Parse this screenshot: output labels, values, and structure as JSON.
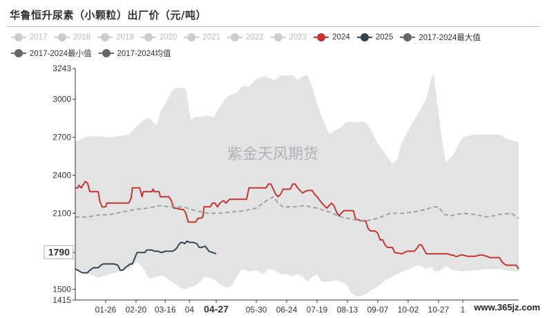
{
  "header": {
    "title": "华鲁恒升尿素（小颗粒）出厂价（元/吨）"
  },
  "legend": [
    {
      "name": "2017",
      "color": "#cccccc",
      "enabled": false
    },
    {
      "name": "2018",
      "color": "#cccccc",
      "enabled": false
    },
    {
      "name": "2019",
      "color": "#cccccc",
      "enabled": false
    },
    {
      "name": "2020",
      "color": "#cccccc",
      "enabled": false
    },
    {
      "name": "2021",
      "color": "#cccccc",
      "enabled": false
    },
    {
      "name": "2022",
      "color": "#cccccc",
      "enabled": false
    },
    {
      "name": "2023",
      "color": "#cccccc",
      "enabled": false
    },
    {
      "name": "2024",
      "color": "#c23531",
      "enabled": true
    },
    {
      "name": "2025",
      "color": "#2f4554",
      "enabled": true
    },
    {
      "name": "2017-2024最大值",
      "color": "#666666",
      "enabled": true
    },
    {
      "name": "2017-2024最小值",
      "color": "#666666",
      "enabled": true
    },
    {
      "name": "2017-2024均值",
      "color": "#666666",
      "enabled": true
    }
  ],
  "watermark": "紫金天风期货",
  "site_watermark": "www.365jz.com",
  "chart_data": {
    "type": "line",
    "ylim": [
      1415,
      3243
    ],
    "y_ticks": [
      1415,
      1500,
      1790,
      2100,
      2400,
      2700,
      3000,
      3243
    ],
    "y_highlight": {
      "value": 1790,
      "label": "1790"
    },
    "x_domain": [
      1,
      366
    ],
    "x_ticks": [
      {
        "label": "01-26",
        "day": 26
      },
      {
        "label": "02-20",
        "day": 51
      },
      {
        "label": "03-16",
        "day": 75
      },
      {
        "label": "04",
        "day": 95
      },
      {
        "label": "04-27",
        "day": 117,
        "bold": true
      },
      {
        "label": "05-30",
        "day": 150
      },
      {
        "label": "06-24",
        "day": 175
      },
      {
        "label": "07-19",
        "day": 200
      },
      {
        "label": "08-13",
        "day": 225
      },
      {
        "label": "09-07",
        "day": 250
      },
      {
        "label": "10-02",
        "day": 275
      },
      {
        "label": "10-27",
        "day": 300
      },
      {
        "label": "1",
        "day": 320
      }
    ],
    "band": {
      "x": [
        1,
        5,
        10,
        15,
        20,
        30,
        45,
        52,
        58,
        62,
        68,
        72,
        75,
        80,
        84,
        88,
        92,
        96,
        100,
        104,
        108,
        115,
        120,
        126,
        130,
        134,
        138,
        144,
        150,
        156,
        160,
        165,
        170,
        175,
        180,
        184,
        188,
        192,
        196,
        200,
        204,
        210,
        216,
        220,
        224,
        228,
        234,
        240,
        244,
        250,
        256,
        262,
        266,
        270,
        276,
        280,
        284,
        290,
        294,
        296,
        298,
        302,
        306,
        312,
        320,
        330,
        340,
        350,
        356,
        362,
        366
      ],
      "max": [
        2665,
        2680,
        2705,
        2710,
        2705,
        2700,
        2720,
        2790,
        2840,
        2850,
        2790,
        2920,
        2960,
        3060,
        3090,
        3090,
        3080,
        2840,
        2860,
        2860,
        2870,
        2860,
        2940,
        3020,
        3040,
        3050,
        3100,
        3100,
        3160,
        3180,
        3170,
        3150,
        3190,
        3185,
        3190,
        3150,
        3180,
        3190,
        3100,
        2960,
        2860,
        2720,
        2760,
        2780,
        2820,
        2820,
        2820,
        2820,
        2760,
        2650,
        2570,
        2490,
        2520,
        2660,
        2770,
        2840,
        2900,
        3000,
        3160,
        3200,
        3050,
        2740,
        2500,
        2560,
        2700,
        2720,
        2720,
        2720,
        2690,
        2670,
        2660
      ],
      "min": [
        1660,
        1650,
        1630,
        1610,
        1590,
        1620,
        1660,
        1720,
        1650,
        1580,
        1600,
        1610,
        1600,
        1560,
        1540,
        1510,
        1500,
        1520,
        1530,
        1560,
        1600,
        1580,
        1540,
        1510,
        1530,
        1600,
        1660,
        1640,
        1650,
        1620,
        1660,
        1650,
        1620,
        1620,
        1600,
        1620,
        1600,
        1560,
        1600,
        1620,
        1560,
        1560,
        1570,
        1560,
        1540,
        1470,
        1440,
        1460,
        1490,
        1520,
        1570,
        1600,
        1620,
        1640,
        1660,
        1680,
        1690,
        1660,
        1680,
        1650,
        1640,
        1650,
        1680,
        1650,
        1640,
        1650,
        1660,
        1660,
        1650,
        1640,
        1640
      ]
    },
    "series": [
      {
        "name": "2024",
        "color": "#c23531",
        "style": "solid",
        "x": [
          1,
          3,
          4,
          6,
          7,
          8,
          9,
          11,
          13,
          20,
          21,
          23,
          26,
          27,
          45,
          47,
          48,
          54,
          56,
          57,
          64,
          65,
          66,
          70,
          71,
          78,
          80,
          82,
          84,
          88,
          90,
          92,
          94,
          100,
          102,
          104,
          106,
          107,
          112,
          114,
          116,
          118,
          120,
          123,
          125,
          128,
          140,
          142,
          144,
          158,
          160,
          162,
          164,
          166,
          168,
          170,
          172,
          174,
          178,
          180,
          182,
          184,
          186,
          188,
          190,
          192,
          196,
          198,
          200,
          204,
          206,
          208,
          210,
          212,
          214,
          216,
          218,
          222,
          230,
          231,
          232,
          234,
          236,
          240,
          242,
          244,
          248,
          250,
          252,
          254,
          256,
          258,
          262,
          264,
          270,
          272,
          274,
          278,
          280,
          282,
          284,
          286,
          290,
          296,
          298,
          300,
          306,
          308,
          310,
          312,
          314,
          316,
          318,
          320,
          324,
          326,
          328,
          330,
          334,
          336,
          340,
          342,
          350,
          352,
          354,
          356,
          358,
          362,
          364,
          366
        ],
        "y": [
          2300,
          2300,
          2320,
          2300,
          2320,
          2330,
          2350,
          2340,
          2270,
          2270,
          2200,
          2150,
          2150,
          2180,
          2180,
          2220,
          2300,
          2300,
          2230,
          2270,
          2270,
          2290,
          2270,
          2270,
          2230,
          2230,
          2200,
          2140,
          2140,
          2130,
          2130,
          2100,
          2030,
          2030,
          2060,
          2060,
          2070,
          2150,
          2150,
          2180,
          2180,
          2150,
          2180,
          2200,
          2180,
          2210,
          2210,
          2210,
          2300,
          2300,
          2330,
          2330,
          2290,
          2250,
          2230,
          2250,
          2290,
          2290,
          2290,
          2330,
          2330,
          2300,
          2280,
          2260,
          2270,
          2280,
          2280,
          2250,
          2230,
          2180,
          2160,
          2140,
          2160,
          2180,
          2160,
          2110,
          2080,
          2120,
          2120,
          2080,
          2050,
          2050,
          2040,
          2040,
          1980,
          1960,
          1960,
          1940,
          1890,
          1890,
          1850,
          1830,
          1830,
          1790,
          1780,
          1790,
          1800,
          1800,
          1800,
          1820,
          1850,
          1850,
          1780,
          1780,
          1780,
          1780,
          1780,
          1780,
          1770,
          1770,
          1760,
          1760,
          1770,
          1770,
          1760,
          1760,
          1760,
          1760,
          1770,
          1770,
          1760,
          1750,
          1750,
          1720,
          1700,
          1690,
          1690,
          1690,
          1690,
          1660
        ]
      },
      {
        "name": "2025",
        "color": "#2f4554",
        "style": "solid",
        "x": [
          1,
          3,
          5,
          7,
          11,
          13,
          16,
          18,
          20,
          22,
          24,
          26,
          28,
          30,
          33,
          36,
          38,
          40,
          42,
          45,
          46,
          48,
          51,
          52,
          55,
          58,
          60,
          62,
          64,
          66,
          69,
          72,
          75,
          78,
          81,
          83,
          85,
          86,
          88,
          89,
          91,
          93,
          95,
          98,
          101,
          103,
          105,
          108,
          111,
          117
        ],
        "y": [
          1660,
          1650,
          1640,
          1630,
          1630,
          1650,
          1670,
          1670,
          1670,
          1690,
          1700,
          1700,
          1700,
          1700,
          1700,
          1690,
          1650,
          1650,
          1670,
          1690,
          1700,
          1700,
          1770,
          1790,
          1790,
          1790,
          1810,
          1810,
          1810,
          1800,
          1800,
          1790,
          1800,
          1800,
          1800,
          1810,
          1830,
          1850,
          1870,
          1870,
          1860,
          1880,
          1870,
          1870,
          1860,
          1830,
          1830,
          1840,
          1800,
          1780
        ]
      },
      {
        "name": "2017-2024均值",
        "color": "#999999",
        "style": "dashed",
        "x": [
          1,
          10,
          20,
          30,
          40,
          50,
          60,
          70,
          80,
          90,
          100,
          110,
          120,
          130,
          140,
          150,
          160,
          164,
          168,
          172,
          180,
          190,
          200,
          210,
          220,
          230,
          240,
          250,
          260,
          270,
          280,
          290,
          295,
          300,
          305,
          310,
          320,
          330,
          340,
          350,
          360,
          366
        ],
        "y": [
          2070,
          2070,
          2085,
          2090,
          2110,
          2130,
          2140,
          2160,
          2150,
          2150,
          2120,
          2100,
          2100,
          2110,
          2120,
          2140,
          2210,
          2230,
          2180,
          2150,
          2150,
          2160,
          2140,
          2110,
          2070,
          2050,
          2040,
          2060,
          2100,
          2100,
          2110,
          2130,
          2150,
          2150,
          2090,
          2080,
          2100,
          2090,
          2070,
          2090,
          2100,
          2060
        ]
      }
    ]
  }
}
